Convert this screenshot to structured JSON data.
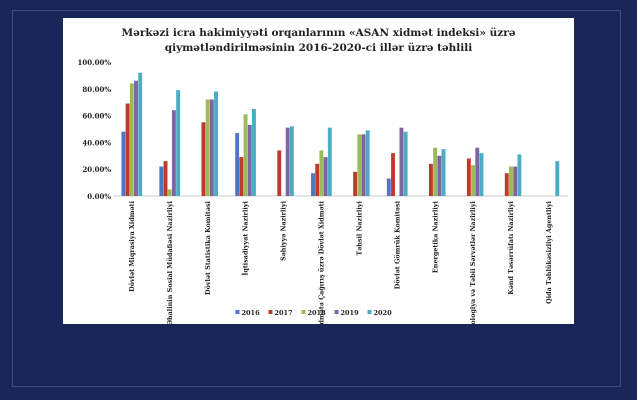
{
  "chart_data": {
    "type": "bar",
    "title_line1": "Mərkəzi icra hakimiyyəti orqanlarının «ASAN xidmət indeksi» üzrə",
    "title_line2": "qiymətləndirilməsinin 2016-2020-ci illər üzrə təhlili",
    "ylim": [
      0,
      100
    ],
    "y_ticks": [
      "0.00%",
      "20.00%",
      "40.00%",
      "60.00%",
      "80.00%",
      "100.00%"
    ],
    "grid": false,
    "legend_position": "bottom",
    "categories": [
      "Dövlət Miqrasiya Xidməti",
      "Əmək və Əhalinin Sosial Müdafiəsi Nazirliyi",
      "Dövlət Statistika Komitəsi",
      "İqtisadiyyat Nazirliyi",
      "Səhiyyə Nazirliyi",
      "Səfərbərlik və Hərbi Xidmətə Çağırış üzrə Dövlət Xidməti",
      "Təhsil Nazirliyi",
      "Dövlət Gömrük Komitəsi",
      "Energetika Nazirliyi",
      "Ekologiya və Təbii Sərvətlər Nazirliyi",
      "Kənd Təsərrüfatı Nazirliyi",
      "Qida Təhlükəsizliyi Agentliyi"
    ],
    "series": [
      {
        "name": "2016",
        "color": "#4f76c6",
        "values": [
          48,
          22,
          null,
          47,
          null,
          17,
          null,
          13,
          null,
          null,
          null,
          null
        ]
      },
      {
        "name": "2017",
        "color": "#c0392b",
        "values": [
          69,
          26,
          55,
          29,
          34,
          24,
          18,
          32,
          24,
          28,
          17,
          null
        ]
      },
      {
        "name": "2018",
        "color": "#9bbb59",
        "values": [
          84,
          5,
          72,
          61,
          null,
          34,
          46,
          null,
          36,
          23,
          22,
          null
        ]
      },
      {
        "name": "2019",
        "color": "#8064a2",
        "values": [
          86,
          64,
          72,
          53,
          51,
          29,
          46,
          51,
          30,
          36,
          22,
          null
        ]
      },
      {
        "name": "2020",
        "color": "#4bacc6",
        "values": [
          92,
          79,
          78,
          65,
          52,
          51,
          49,
          48,
          35,
          32,
          31,
          26
        ]
      }
    ]
  }
}
